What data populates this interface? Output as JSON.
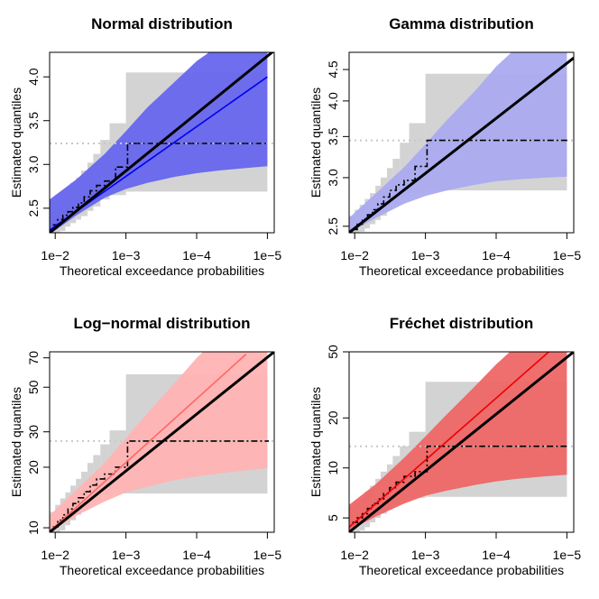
{
  "chart_data": [
    {
      "type": "area",
      "title": "Normal distribution",
      "xlabel": "Theoretical exceedance probabilities",
      "ylabel": "Estimated quantiles",
      "x_scale": "log-reciprocal",
      "y_scale": "linear",
      "xlim": [
        0.012,
        8e-06
      ],
      "ylim": [
        2.22,
        4.28
      ],
      "x_ticks": [
        {
          "value": 0.01,
          "label": "1e−2"
        },
        {
          "value": 0.001,
          "label": "1e−3"
        },
        {
          "value": 0.0001,
          "label": "1e−4"
        },
        {
          "value": 1e-05,
          "label": "1e−5"
        }
      ],
      "y_ticks": [
        {
          "value": 2.5,
          "label": "2.5"
        },
        {
          "value": 3.0,
          "label": "3.0"
        },
        {
          "value": 3.5,
          "label": "3.5"
        },
        {
          "value": 4.0,
          "label": "4.0"
        }
      ],
      "band_color": "#6666ee",
      "fit_color": "#0000ee",
      "band": {
        "p": [
          0.012,
          0.005,
          0.002,
          0.001,
          0.0005,
          0.0002,
          0.0001,
          5e-05,
          2e-05,
          1e-05
        ],
        "lower": [
          2.2,
          2.42,
          2.62,
          2.72,
          2.79,
          2.86,
          2.9,
          2.93,
          2.96,
          2.98
        ],
        "upper": [
          2.6,
          2.83,
          3.12,
          3.38,
          3.65,
          3.95,
          4.18,
          4.35,
          4.55,
          4.7
        ]
      },
      "fit": {
        "p": [
          0.012,
          1e-05
        ],
        "y": [
          2.25,
          4.0
        ]
      },
      "identity": {
        "p": [
          0.012,
          8e-06
        ],
        "y": [
          2.22,
          4.3
        ]
      },
      "threshold": 3.24,
      "steps": [
        {
          "p": 0.0108,
          "y": 2.31
        },
        {
          "p": 0.0092,
          "y": 2.37
        },
        {
          "p": 0.0078,
          "y": 2.42
        },
        {
          "p": 0.0066,
          "y": 2.46
        },
        {
          "p": 0.0056,
          "y": 2.51
        },
        {
          "p": 0.0047,
          "y": 2.56
        },
        {
          "p": 0.0039,
          "y": 2.63
        },
        {
          "p": 0.0032,
          "y": 2.7
        },
        {
          "p": 0.0026,
          "y": 2.76
        },
        {
          "p": 0.002,
          "y": 2.81
        },
        {
          "p": 0.0014,
          "y": 2.97
        },
        {
          "p": 0.00095,
          "y": 3.24
        },
        {
          "p": 9.5e-06,
          "y": 3.24
        }
      ],
      "ci_boxes": [
        {
          "p0": 0.0118,
          "p1": 0.01,
          "lo": 2.22,
          "hi": 2.59
        },
        {
          "p0": 0.01,
          "p1": 0.0085,
          "lo": 2.22,
          "hi": 2.65
        },
        {
          "p0": 0.0085,
          "p1": 0.0072,
          "lo": 2.24,
          "hi": 2.69
        },
        {
          "p0": 0.0072,
          "p1": 0.0061,
          "lo": 2.29,
          "hi": 2.73
        },
        {
          "p0": 0.0061,
          "p1": 0.0051,
          "lo": 2.33,
          "hi": 2.79
        },
        {
          "p0": 0.0051,
          "p1": 0.0043,
          "lo": 2.37,
          "hi": 2.85
        },
        {
          "p0": 0.0043,
          "p1": 0.0035,
          "lo": 2.41,
          "hi": 2.93
        },
        {
          "p0": 0.0035,
          "p1": 0.0029,
          "lo": 2.47,
          "hi": 3.02
        },
        {
          "p0": 0.0029,
          "p1": 0.0023,
          "lo": 2.52,
          "hi": 3.12
        },
        {
          "p0": 0.0023,
          "p1": 0.0017,
          "lo": 2.6,
          "hi": 3.28
        },
        {
          "p0": 0.0017,
          "p1": 0.001,
          "lo": 2.65,
          "hi": 3.47
        },
        {
          "p0": 0.001,
          "p1": 1e-05,
          "lo": 2.69,
          "hi": 4.05
        }
      ]
    },
    {
      "type": "area",
      "title": "Gamma distribution",
      "xlabel": "Theoretical exceedance probabilities",
      "ylabel": "Estimated quantiles",
      "x_scale": "log-reciprocal",
      "y_scale": "log",
      "xlim": [
        0.012,
        8e-06
      ],
      "ylim": [
        2.44,
        4.8
      ],
      "x_ticks": [
        {
          "value": 0.01,
          "label": "1e−2"
        },
        {
          "value": 0.001,
          "label": "1e−3"
        },
        {
          "value": 0.0001,
          "label": "1e−4"
        },
        {
          "value": 1e-05,
          "label": "1e−5"
        }
      ],
      "y_ticks": [
        {
          "value": 2.5,
          "label": "2.5"
        },
        {
          "value": 3.0,
          "label": "3.0"
        },
        {
          "value": 3.5,
          "label": "3.5"
        },
        {
          "value": 4.0,
          "label": "4.0"
        },
        {
          "value": 4.5,
          "label": "4.5"
        }
      ],
      "band_color": "#aaaaf0",
      "fit_color": "#3333ee",
      "band": {
        "p": [
          0.012,
          0.005,
          0.002,
          0.001,
          0.0005,
          0.0002,
          0.0001,
          5e-05,
          2e-05,
          1e-05
        ],
        "lower": [
          2.44,
          2.58,
          2.72,
          2.8,
          2.86,
          2.92,
          2.96,
          2.98,
          3.0,
          3.01
        ],
        "upper": [
          2.58,
          2.83,
          3.12,
          3.4,
          3.72,
          4.15,
          4.55,
          4.9,
          5.3,
          5.6
        ]
      },
      "fit": {
        "p": [
          0.012,
          1e-05
        ],
        "y": [
          2.45,
          4.6
        ]
      },
      "identity": {
        "p": [
          0.012,
          8e-06
        ],
        "y": [
          2.44,
          4.7
        ]
      },
      "threshold": 3.45,
      "steps": [
        {
          "p": 0.0108,
          "y": 2.47
        },
        {
          "p": 0.0092,
          "y": 2.52
        },
        {
          "p": 0.0078,
          "y": 2.57
        },
        {
          "p": 0.0066,
          "y": 2.61
        },
        {
          "p": 0.0056,
          "y": 2.66
        },
        {
          "p": 0.0047,
          "y": 2.72
        },
        {
          "p": 0.0039,
          "y": 2.79
        },
        {
          "p": 0.0032,
          "y": 2.86
        },
        {
          "p": 0.0026,
          "y": 2.92
        },
        {
          "p": 0.002,
          "y": 2.97
        },
        {
          "p": 0.0014,
          "y": 3.13
        },
        {
          "p": 0.00095,
          "y": 3.45
        },
        {
          "p": 9.5e-06,
          "y": 3.45
        }
      ],
      "ci_boxes": [
        {
          "p0": 0.0118,
          "p1": 0.01,
          "lo": 2.44,
          "hi": 2.6
        },
        {
          "p0": 0.01,
          "p1": 0.0085,
          "lo": 2.44,
          "hi": 2.66
        },
        {
          "p0": 0.0085,
          "p1": 0.0072,
          "lo": 2.45,
          "hi": 2.71
        },
        {
          "p0": 0.0072,
          "p1": 0.0061,
          "lo": 2.48,
          "hi": 2.77
        },
        {
          "p0": 0.0061,
          "p1": 0.0051,
          "lo": 2.52,
          "hi": 2.83
        },
        {
          "p0": 0.0051,
          "p1": 0.0043,
          "lo": 2.56,
          "hi": 2.91
        },
        {
          "p0": 0.0043,
          "p1": 0.0035,
          "lo": 2.6,
          "hi": 3.0
        },
        {
          "p0": 0.0035,
          "p1": 0.0029,
          "lo": 2.66,
          "hi": 3.11
        },
        {
          "p0": 0.0029,
          "p1": 0.0023,
          "lo": 2.71,
          "hi": 3.22
        },
        {
          "p0": 0.0023,
          "p1": 0.0017,
          "lo": 2.79,
          "hi": 3.42
        },
        {
          "p0": 0.0017,
          "p1": 0.001,
          "lo": 2.83,
          "hi": 3.68
        },
        {
          "p0": 0.001,
          "p1": 1e-05,
          "lo": 2.86,
          "hi": 4.43
        }
      ]
    },
    {
      "type": "area",
      "title": "Log−normal distribution",
      "xlabel": "Theoretical exceedance probabilities",
      "ylabel": "Estimated quantiles",
      "x_scale": "log-reciprocal",
      "y_scale": "log",
      "xlim": [
        0.012,
        8e-06
      ],
      "ylim": [
        9.5,
        75
      ],
      "x_ticks": [
        {
          "value": 0.01,
          "label": "1e−2"
        },
        {
          "value": 0.001,
          "label": "1e−3"
        },
        {
          "value": 0.0001,
          "label": "1e−4"
        },
        {
          "value": 1e-05,
          "label": "1e−5"
        }
      ],
      "y_ticks": [
        {
          "value": 10,
          "label": "10"
        },
        {
          "value": 20,
          "label": "20"
        },
        {
          "value": 30,
          "label": "30"
        },
        {
          "value": 50,
          "label": "50"
        },
        {
          "value": 70,
          "label": "70"
        }
      ],
      "band_color": "#ffb3b3",
      "fit_color": "#ff6666",
      "band": {
        "p": [
          0.012,
          0.005,
          0.002,
          0.001,
          0.0005,
          0.0002,
          0.0001,
          5e-05,
          2e-05,
          1e-05
        ],
        "lower": [
          9.5,
          11.5,
          13.5,
          15.0,
          16.0,
          17.3,
          18.0,
          18.6,
          19.3,
          19.8
        ],
        "upper": [
          11.5,
          15.5,
          21.0,
          28.0,
          37.0,
          53.0,
          70.0,
          88.0,
          120.0,
          150.0
        ]
      },
      "fit": {
        "p": [
          0.012,
          2e-05
        ],
        "y": [
          9.6,
          73
        ]
      },
      "identity": {
        "p": [
          0.012,
          8e-06
        ],
        "y": [
          9.5,
          75
        ]
      },
      "threshold": 27.0,
      "steps": [
        {
          "p": 0.0108,
          "y": 10.1
        },
        {
          "p": 0.0092,
          "y": 10.9
        },
        {
          "p": 0.0078,
          "y": 11.6
        },
        {
          "p": 0.0066,
          "y": 12.4
        },
        {
          "p": 0.0056,
          "y": 13.2
        },
        {
          "p": 0.0047,
          "y": 14.1
        },
        {
          "p": 0.0039,
          "y": 15.1
        },
        {
          "p": 0.0032,
          "y": 16.3
        },
        {
          "p": 0.0026,
          "y": 17.5
        },
        {
          "p": 0.002,
          "y": 18.5
        },
        {
          "p": 0.0014,
          "y": 20.0
        },
        {
          "p": 0.00095,
          "y": 27.0
        },
        {
          "p": 9.5e-06,
          "y": 27.0
        }
      ],
      "ci_boxes": [
        {
          "p0": 0.0118,
          "p1": 0.01,
          "lo": 9.5,
          "hi": 12.0
        },
        {
          "p0": 0.01,
          "p1": 0.0085,
          "lo": 9.5,
          "hi": 13.0
        },
        {
          "p0": 0.0085,
          "p1": 0.0072,
          "lo": 9.7,
          "hi": 14.0
        },
        {
          "p0": 0.0072,
          "p1": 0.0061,
          "lo": 10.3,
          "hi": 15.0
        },
        {
          "p0": 0.0061,
          "p1": 0.0051,
          "lo": 10.9,
          "hi": 16.2
        },
        {
          "p0": 0.0051,
          "p1": 0.0043,
          "lo": 11.6,
          "hi": 17.5
        },
        {
          "p0": 0.0043,
          "p1": 0.0035,
          "lo": 12.2,
          "hi": 19.0
        },
        {
          "p0": 0.0035,
          "p1": 0.0029,
          "lo": 12.9,
          "hi": 21.0
        },
        {
          "p0": 0.0029,
          "p1": 0.0023,
          "lo": 13.6,
          "hi": 23.0
        },
        {
          "p0": 0.0023,
          "p1": 0.0017,
          "lo": 14.5,
          "hi": 26.0
        },
        {
          "p0": 0.0017,
          "p1": 0.001,
          "lo": 14.8,
          "hi": 30.5
        },
        {
          "p0": 0.001,
          "p1": 1e-05,
          "lo": 14.8,
          "hi": 58.0
        }
      ]
    },
    {
      "type": "area",
      "title": "Fréchet distribution",
      "xlabel": "Theoretical exceedance probabilities",
      "ylabel": "Estimated quantiles",
      "x_scale": "log-reciprocal",
      "y_scale": "log",
      "xlim": [
        0.012,
        8e-06
      ],
      "ylim": [
        4.1,
        50
      ],
      "x_ticks": [
        {
          "value": 0.01,
          "label": "1e−2"
        },
        {
          "value": 0.001,
          "label": "1e−3"
        },
        {
          "value": 0.0001,
          "label": "1e−4"
        },
        {
          "value": 1e-05,
          "label": "1e−5"
        }
      ],
      "y_ticks": [
        {
          "value": 5,
          "label": "5"
        },
        {
          "value": 10,
          "label": "10"
        },
        {
          "value": 20,
          "label": "20"
        },
        {
          "value": 50,
          "label": "50"
        }
      ],
      "band_color": "#ee6666",
      "fit_color": "#ee0000",
      "band": {
        "p": [
          0.012,
          0.005,
          0.002,
          0.001,
          0.0005,
          0.0002,
          0.0001,
          5e-05,
          2e-05,
          1e-05
        ],
        "lower": [
          4.2,
          5.1,
          6.1,
          6.8,
          7.3,
          7.9,
          8.3,
          8.6,
          8.9,
          9.1
        ],
        "upper": [
          6.0,
          8.0,
          11.5,
          15.5,
          21.0,
          31.0,
          42.0,
          55.0,
          75.0,
          95.0
        ]
      },
      "fit": {
        "p": [
          0.012,
          1.8e-05
        ],
        "y": [
          4.4,
          50
        ]
      },
      "identity": {
        "p": [
          0.012,
          8e-06
        ],
        "y": [
          4.1,
          50
        ]
      },
      "threshold": 13.5,
      "steps": [
        {
          "p": 0.0108,
          "y": 4.7
        },
        {
          "p": 0.0092,
          "y": 5.0
        },
        {
          "p": 0.0078,
          "y": 5.3
        },
        {
          "p": 0.0066,
          "y": 5.7
        },
        {
          "p": 0.0056,
          "y": 6.1
        },
        {
          "p": 0.0047,
          "y": 6.5
        },
        {
          "p": 0.0039,
          "y": 7.0
        },
        {
          "p": 0.0032,
          "y": 7.6
        },
        {
          "p": 0.0026,
          "y": 8.2
        },
        {
          "p": 0.002,
          "y": 8.9
        },
        {
          "p": 0.0014,
          "y": 9.5
        },
        {
          "p": 0.00095,
          "y": 13.5
        },
        {
          "p": 9.5e-06,
          "y": 13.5
        }
      ],
      "ci_boxes": [
        {
          "p0": 0.0118,
          "p1": 0.01,
          "lo": 4.1,
          "hi": 5.8
        },
        {
          "p0": 0.01,
          "p1": 0.0085,
          "lo": 4.1,
          "hi": 6.2
        },
        {
          "p0": 0.0085,
          "p1": 0.0072,
          "lo": 4.2,
          "hi": 6.7
        },
        {
          "p0": 0.0072,
          "p1": 0.0061,
          "lo": 4.4,
          "hi": 7.2
        },
        {
          "p0": 0.0061,
          "p1": 0.0051,
          "lo": 4.7,
          "hi": 7.8
        },
        {
          "p0": 0.0051,
          "p1": 0.0043,
          "lo": 5.0,
          "hi": 8.6
        },
        {
          "p0": 0.0043,
          "p1": 0.0035,
          "lo": 5.3,
          "hi": 9.5
        },
        {
          "p0": 0.0035,
          "p1": 0.0029,
          "lo": 5.6,
          "hi": 10.5
        },
        {
          "p0": 0.0029,
          "p1": 0.0023,
          "lo": 6.0,
          "hi": 11.8
        },
        {
          "p0": 0.0023,
          "p1": 0.0017,
          "lo": 6.4,
          "hi": 13.5
        },
        {
          "p0": 0.0017,
          "p1": 0.001,
          "lo": 6.6,
          "hi": 16.5
        },
        {
          "p0": 0.001,
          "p1": 1e-05,
          "lo": 6.7,
          "hi": 33.0
        }
      ]
    }
  ]
}
